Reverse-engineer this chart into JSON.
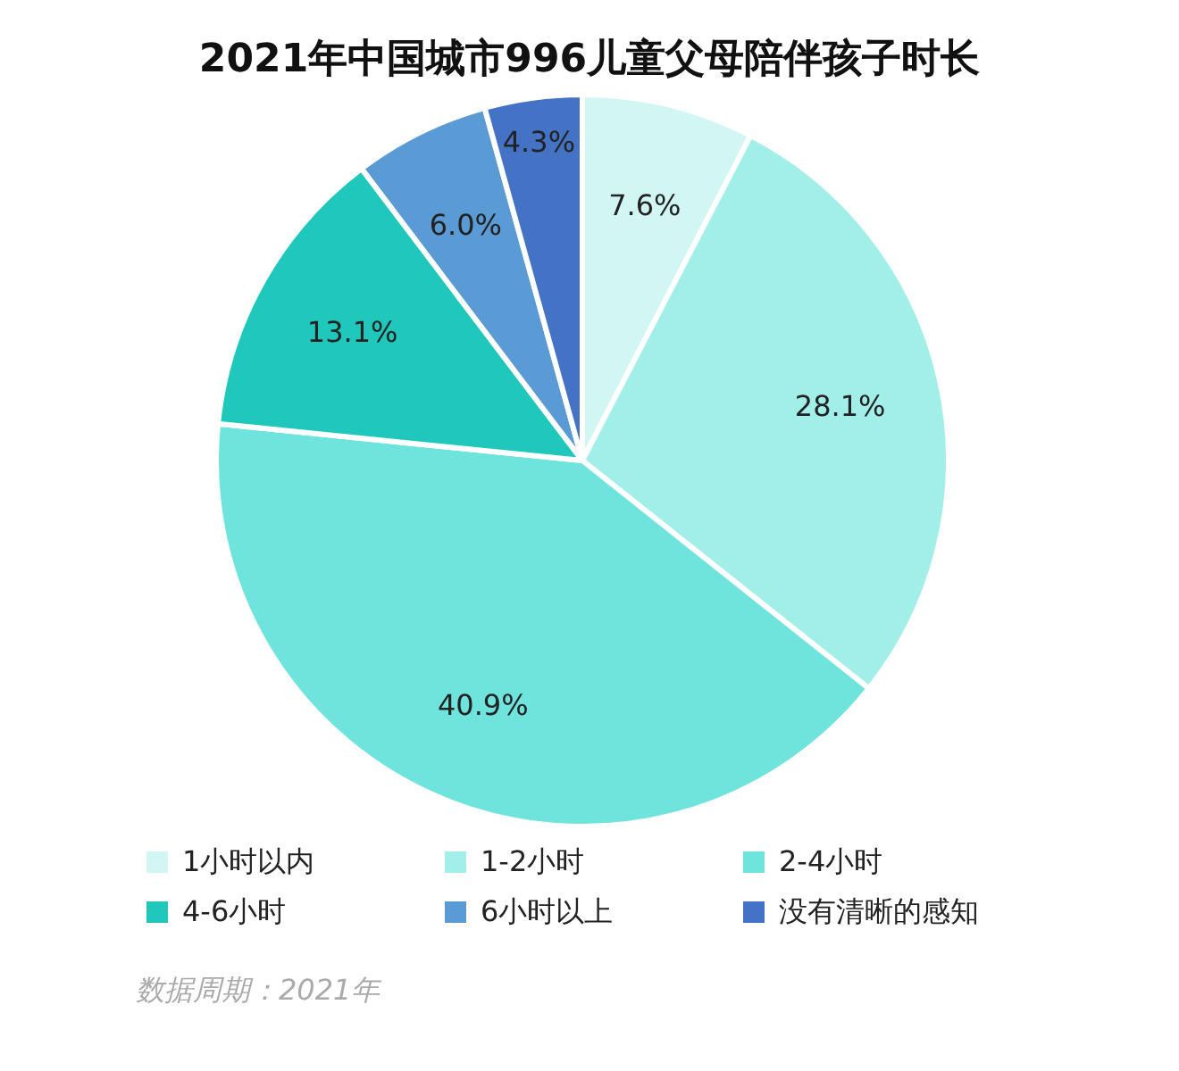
{
  "chart_data": {
    "type": "pie",
    "title": "2021年中国城市996儿童父母陪伴孩子时长",
    "categories": [
      "1小时以内",
      "1-2小时",
      "2-4小时",
      "4-6小时",
      "6小时以上",
      "没有清晰的感知"
    ],
    "values": [
      7.6,
      28.1,
      40.9,
      13.1,
      6.0,
      4.3
    ],
    "value_labels": [
      "7.6%",
      "28.1%",
      "40.9%",
      "13.1%",
      "6.0%",
      "4.3%"
    ],
    "colors": [
      "#d2f6f3",
      "#a2eee9",
      "#6ee4dd",
      "#1fc8bb",
      "#5b9bd5",
      "#4472c4"
    ],
    "legend": "bottom",
    "annotations": [
      "数据周期：2021年"
    ]
  }
}
